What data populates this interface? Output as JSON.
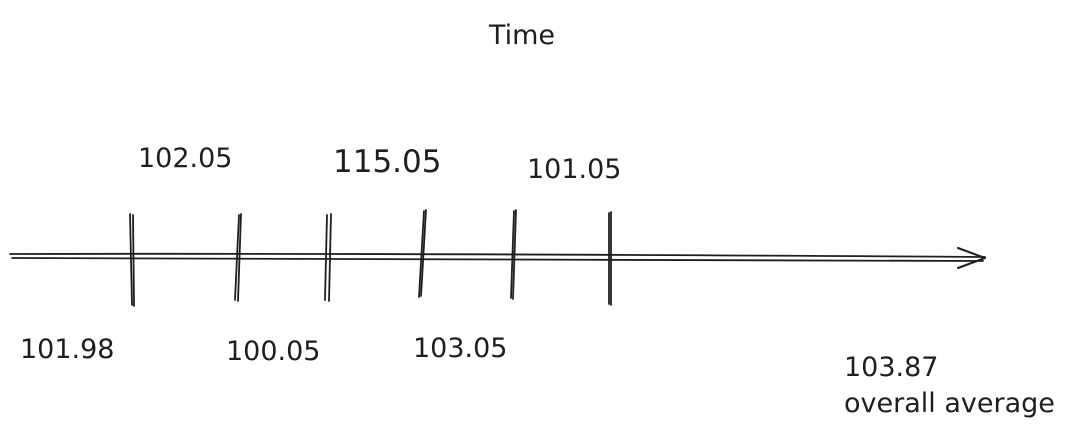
{
  "title": "Time",
  "axis": {
    "arrow": "right"
  },
  "upper_labels": [
    {
      "key": "upper-1",
      "text": "102.05",
      "highlight": false
    },
    {
      "key": "upper-2",
      "text": "115.05",
      "highlight": true
    },
    {
      "key": "upper-3",
      "text": "101.05",
      "highlight": false
    }
  ],
  "lower_labels": [
    {
      "key": "lower-1",
      "text": "101.98"
    },
    {
      "key": "lower-2",
      "text": "100.05"
    },
    {
      "key": "lower-3",
      "text": "103.05"
    }
  ],
  "average": {
    "value": "103.87",
    "caption": "overall average"
  },
  "tick_count": 6,
  "colors": {
    "ink": "#1e1e1e",
    "highlight": "#e03131",
    "background": "#ffffff"
  }
}
